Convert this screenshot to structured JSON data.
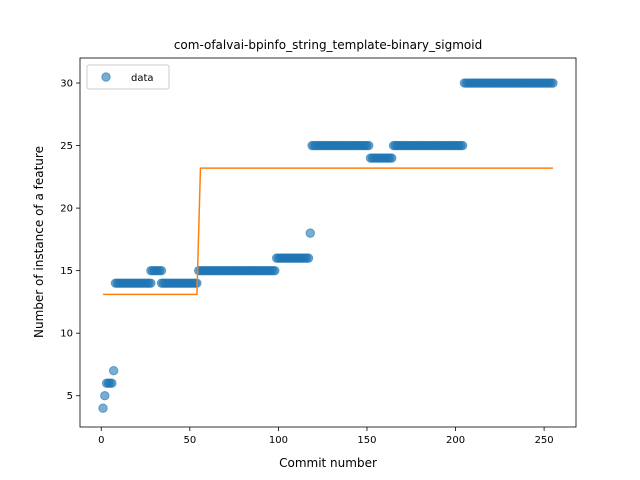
{
  "chart_data": {
    "type": "scatter",
    "title": "com-ofalvai-bpinfo_string_template-binary_sigmoid",
    "xlabel": "Commit number",
    "ylabel": "Number of instance of a feature",
    "xlim": [
      -12,
      268
    ],
    "ylim": [
      2.5,
      32.0
    ],
    "xticks": [
      0,
      50,
      100,
      150,
      200,
      250
    ],
    "yticks": [
      5,
      10,
      15,
      20,
      25,
      30
    ],
    "legend": {
      "position": "top-left",
      "entries": [
        "data"
      ]
    },
    "grid": false,
    "series": [
      {
        "name": "data",
        "kind": "scatter",
        "color": "#1f77b4",
        "segments": [
          {
            "x_start": 1,
            "x_end": 1,
            "y": 4
          },
          {
            "x_start": 2,
            "x_end": 2,
            "y": 5
          },
          {
            "x_start": 3,
            "x_end": 6,
            "y": 6
          },
          {
            "x_start": 7,
            "x_end": 7,
            "y": 7
          },
          {
            "x_start": 8,
            "x_end": 28,
            "y": 14
          },
          {
            "x_start": 28,
            "x_end": 34,
            "y": 15
          },
          {
            "x_start": 34,
            "x_end": 54,
            "y": 14
          },
          {
            "x_start": 55,
            "x_end": 98,
            "y": 15
          },
          {
            "x_start": 99,
            "x_end": 117,
            "y": 16
          },
          {
            "x_start": 118,
            "x_end": 118,
            "y": 18
          },
          {
            "x_start": 119,
            "x_end": 151,
            "y": 25
          },
          {
            "x_start": 152,
            "x_end": 164,
            "y": 24
          },
          {
            "x_start": 165,
            "x_end": 204,
            "y": 25
          },
          {
            "x_start": 205,
            "x_end": 255,
            "y": 30
          }
        ]
      },
      {
        "kind": "line",
        "color": "#ff7f0e",
        "points": [
          [
            1,
            13.1
          ],
          [
            54,
            13.1
          ],
          [
            56,
            23.2
          ],
          [
            255,
            23.2
          ]
        ]
      }
    ]
  }
}
